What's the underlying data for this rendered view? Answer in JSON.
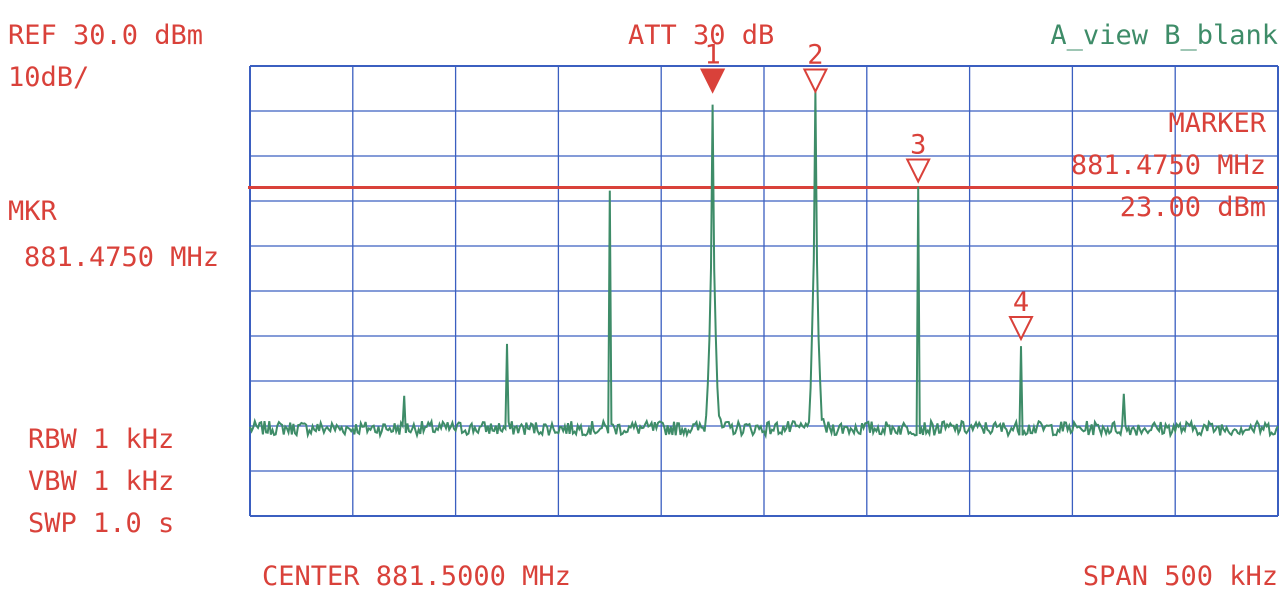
{
  "header": {
    "ref_level": "REF 30.0 dBm",
    "scale": "10dB/",
    "attenuation": "ATT 30 dB",
    "trace_mode": "A_view B_blank"
  },
  "marker_readout": {
    "title": "MARKER",
    "frequency": "881.4750 MHz",
    "amplitude": "23.00 dBm"
  },
  "mkr": {
    "label": "MKR",
    "frequency": "881.4750 MHz"
  },
  "settings": {
    "rbw": "RBW 1 kHz",
    "vbw": "VBW 1 kHz",
    "sweep": "SWP 1.0 s"
  },
  "footer": {
    "center": "CENTER 881.5000 MHz",
    "span": "SPAN 500 kHz"
  },
  "colors": {
    "text": "#d9413a",
    "trace": "#3e8c68",
    "grid": "#3b5fc0",
    "reference_line": "#d9413a"
  },
  "chart_data": {
    "type": "line",
    "title": "",
    "xlabel": "",
    "ylabel": "",
    "x_unit": "MHz",
    "y_unit": "dBm",
    "xlim": [
      881.25,
      881.75
    ],
    "ylim": [
      -70,
      30
    ],
    "grid": true,
    "reference_line_dbm": 3,
    "noise_floor_dbm": -50.5,
    "peaks": [
      {
        "freq": 881.325,
        "level": -44
      },
      {
        "freq": 881.375,
        "level": -32
      },
      {
        "freq": 881.425,
        "level": 3
      },
      {
        "freq": 881.475,
        "level": 23
      },
      {
        "freq": 881.525,
        "level": 23
      },
      {
        "freq": 881.575,
        "level": 3
      },
      {
        "freq": 881.625,
        "level": -32
      },
      {
        "freq": 881.675,
        "level": -44
      }
    ],
    "markers": [
      {
        "label": "1",
        "freq": 881.475,
        "level": 23,
        "active": true
      },
      {
        "label": "2",
        "freq": 881.525,
        "level": 23,
        "active": false
      },
      {
        "label": "3",
        "freq": 881.575,
        "level": 3,
        "active": false
      },
      {
        "label": "4",
        "freq": 881.625,
        "level": -32,
        "active": false
      }
    ]
  }
}
